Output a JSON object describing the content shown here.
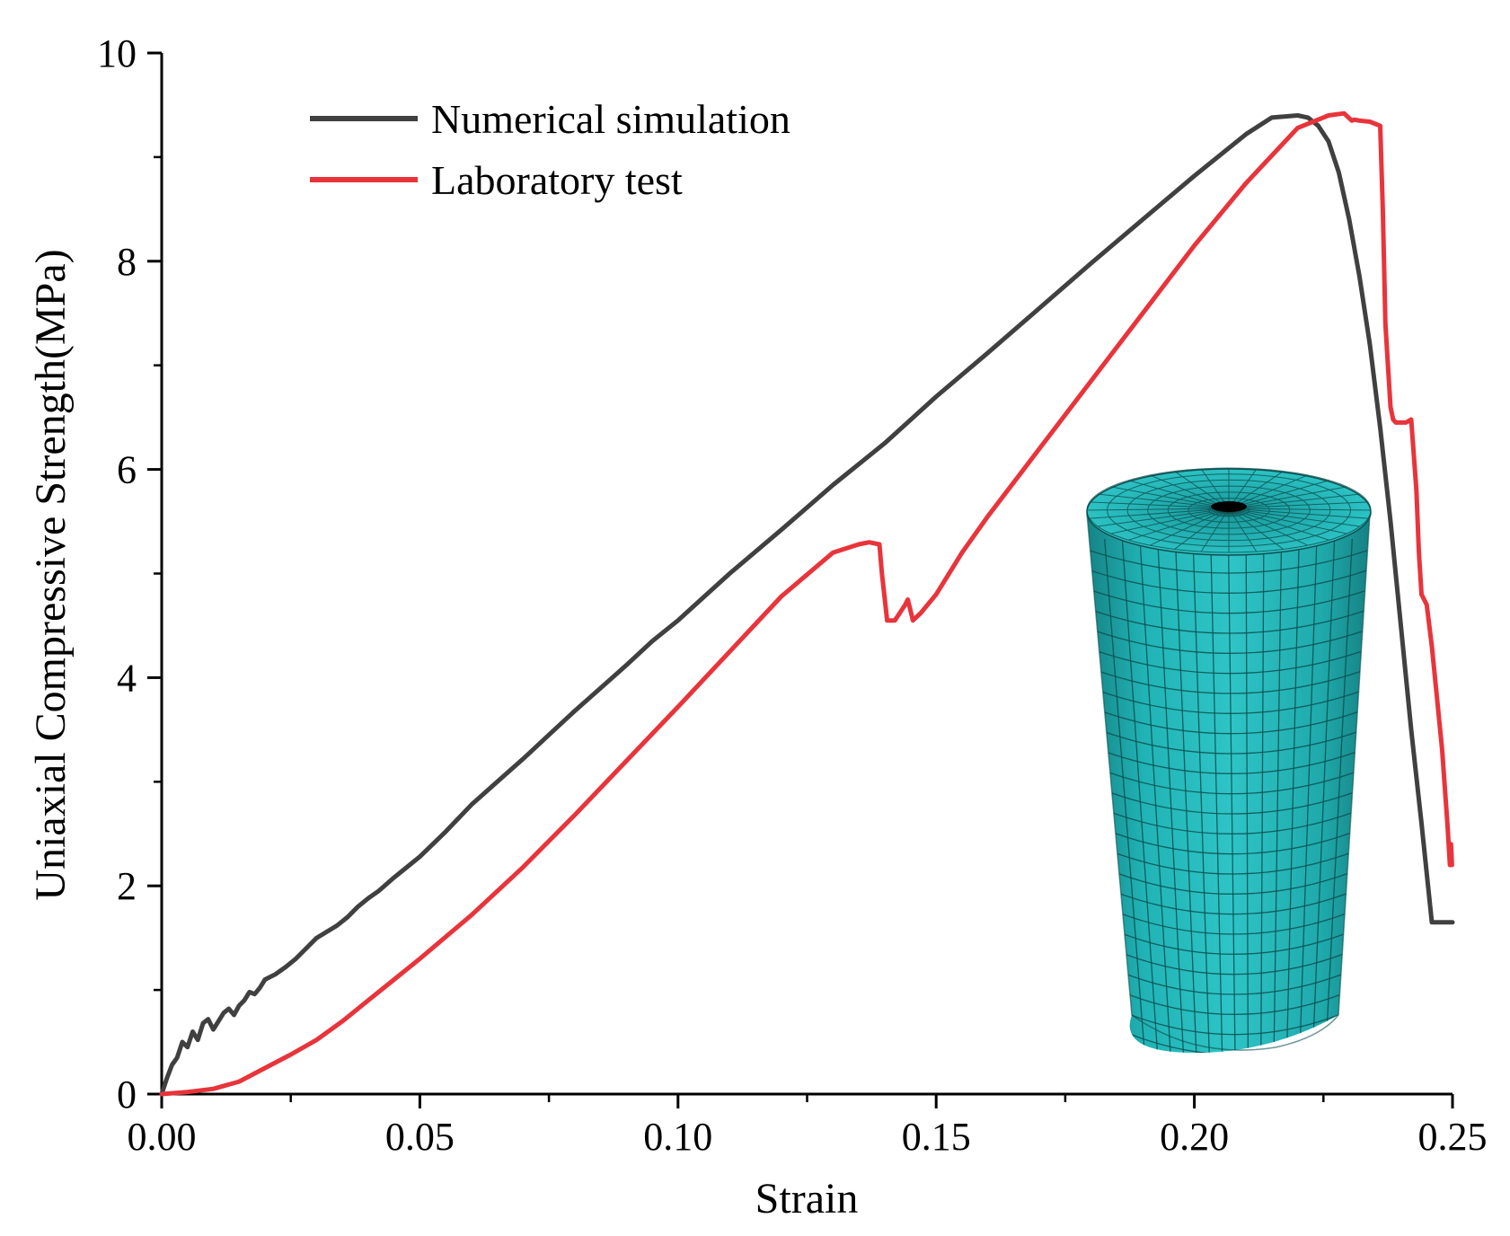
{
  "chart_data": {
    "type": "line",
    "title": "",
    "xlabel": "Strain",
    "ylabel": "Uniaxial Compressive Strength(MPa)",
    "xlim": [
      0.0,
      0.25
    ],
    "ylim": [
      0,
      10
    ],
    "x_ticks": [
      {
        "value": 0.0,
        "label": "0.00"
      },
      {
        "value": 0.05,
        "label": "0.05"
      },
      {
        "value": 0.1,
        "label": "0.10"
      },
      {
        "value": 0.15,
        "label": "0.15"
      },
      {
        "value": 0.2,
        "label": "0.20"
      },
      {
        "value": 0.25,
        "label": "0.25"
      }
    ],
    "x_minor_ticks": [
      0.025,
      0.075,
      0.125,
      0.175,
      0.225
    ],
    "y_ticks": [
      {
        "value": 0,
        "label": "0"
      },
      {
        "value": 2,
        "label": "2"
      },
      {
        "value": 4,
        "label": "4"
      },
      {
        "value": 6,
        "label": "6"
      },
      {
        "value": 8,
        "label": "8"
      },
      {
        "value": 10,
        "label": "10"
      }
    ],
    "y_minor_ticks": [
      1,
      3,
      5,
      7,
      9
    ],
    "grid": false,
    "legend_position": "top-left",
    "series": [
      {
        "name": "Numerical simulation",
        "color": "#404040",
        "x": [
          0.0,
          0.001,
          0.002,
          0.003,
          0.004,
          0.005,
          0.006,
          0.007,
          0.008,
          0.009,
          0.01,
          0.011,
          0.012,
          0.013,
          0.014,
          0.015,
          0.016,
          0.017,
          0.018,
          0.019,
          0.02,
          0.022,
          0.024,
          0.026,
          0.028,
          0.03,
          0.032,
          0.034,
          0.036,
          0.038,
          0.04,
          0.042,
          0.045,
          0.048,
          0.05,
          0.055,
          0.06,
          0.065,
          0.07,
          0.075,
          0.08,
          0.085,
          0.09,
          0.095,
          0.1,
          0.11,
          0.12,
          0.13,
          0.14,
          0.15,
          0.16,
          0.17,
          0.18,
          0.19,
          0.2,
          0.21,
          0.215,
          0.22,
          0.222,
          0.224,
          0.226,
          0.228,
          0.23,
          0.232,
          0.234,
          0.236,
          0.238,
          0.24,
          0.242,
          0.244,
          0.246,
          0.248,
          0.25
        ],
        "values": [
          0.0,
          0.15,
          0.28,
          0.35,
          0.5,
          0.45,
          0.6,
          0.52,
          0.68,
          0.72,
          0.62,
          0.7,
          0.78,
          0.82,
          0.76,
          0.85,
          0.9,
          0.98,
          0.96,
          1.02,
          1.1,
          1.15,
          1.22,
          1.3,
          1.4,
          1.5,
          1.56,
          1.62,
          1.7,
          1.8,
          1.88,
          1.95,
          2.08,
          2.2,
          2.28,
          2.52,
          2.78,
          3.0,
          3.22,
          3.45,
          3.68,
          3.9,
          4.12,
          4.35,
          4.55,
          5.0,
          5.42,
          5.85,
          6.25,
          6.7,
          7.12,
          7.55,
          7.98,
          8.4,
          8.82,
          9.22,
          9.38,
          9.4,
          9.38,
          9.3,
          9.15,
          8.85,
          8.4,
          7.85,
          7.2,
          6.4,
          5.5,
          4.5,
          3.5,
          2.6,
          1.65,
          1.65,
          1.65
        ]
      },
      {
        "name": "Laboratory test",
        "color": "#e8343a",
        "x": [
          0.0,
          0.005,
          0.01,
          0.015,
          0.02,
          0.025,
          0.03,
          0.035,
          0.04,
          0.045,
          0.05,
          0.06,
          0.07,
          0.08,
          0.09,
          0.1,
          0.11,
          0.12,
          0.13,
          0.135,
          0.137,
          0.139,
          0.1395,
          0.1405,
          0.142,
          0.144,
          0.1445,
          0.1455,
          0.147,
          0.15,
          0.155,
          0.16,
          0.17,
          0.18,
          0.19,
          0.2,
          0.21,
          0.22,
          0.226,
          0.229,
          0.2305,
          0.231,
          0.232,
          0.234,
          0.236,
          0.2365,
          0.237,
          0.2375,
          0.238,
          0.2385,
          0.239,
          0.24,
          0.241,
          0.242,
          0.243,
          0.2435,
          0.244,
          0.245,
          0.246,
          0.247,
          0.248,
          0.249,
          0.2495,
          0.2497,
          0.2499
        ],
        "values": [
          0.0,
          0.02,
          0.05,
          0.12,
          0.25,
          0.38,
          0.52,
          0.7,
          0.9,
          1.1,
          1.3,
          1.72,
          2.18,
          2.68,
          3.2,
          3.72,
          4.25,
          4.78,
          5.2,
          5.28,
          5.3,
          5.28,
          5.0,
          4.55,
          4.55,
          4.7,
          4.75,
          4.55,
          4.62,
          4.8,
          5.2,
          5.55,
          6.2,
          6.85,
          7.5,
          8.15,
          8.75,
          9.28,
          9.4,
          9.42,
          9.35,
          9.36,
          9.35,
          9.34,
          9.3,
          8.5,
          7.4,
          7.0,
          6.6,
          6.48,
          6.45,
          6.45,
          6.45,
          6.48,
          5.8,
          5.2,
          4.8,
          4.7,
          4.3,
          3.8,
          3.3,
          2.6,
          2.2,
          2.4,
          2.2
        ]
      }
    ]
  },
  "inset_image": {
    "label": "cylindrical specimen mesh",
    "fill_color": "#1eb0b2",
    "grid_color": "#0d4f50"
  }
}
